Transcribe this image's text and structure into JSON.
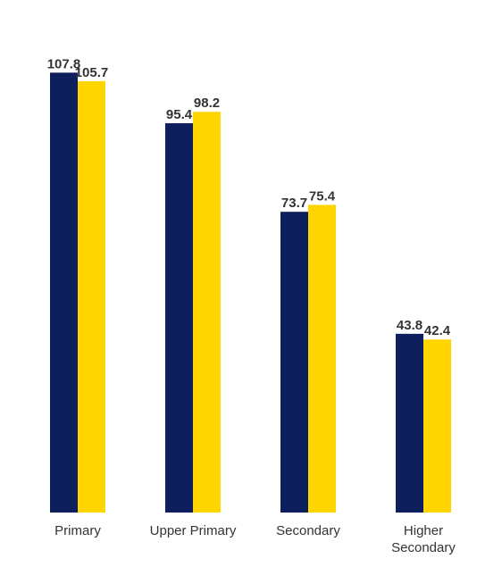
{
  "chart_data": {
    "type": "bar",
    "categories": [
      [
        "Primary"
      ],
      [
        "Upper Primary"
      ],
      [
        "Secondary"
      ],
      [
        "Higher",
        "Secondary"
      ]
    ],
    "series": [
      {
        "color": "#0d1f5c",
        "values": [
          107.8,
          95.4,
          73.7,
          43.8
        ]
      },
      {
        "color": "#ffd500",
        "values": [
          105.7,
          98.2,
          75.4,
          42.4
        ]
      }
    ],
    "ylim": [
      0,
      110
    ],
    "grid": false,
    "legend": "none"
  }
}
